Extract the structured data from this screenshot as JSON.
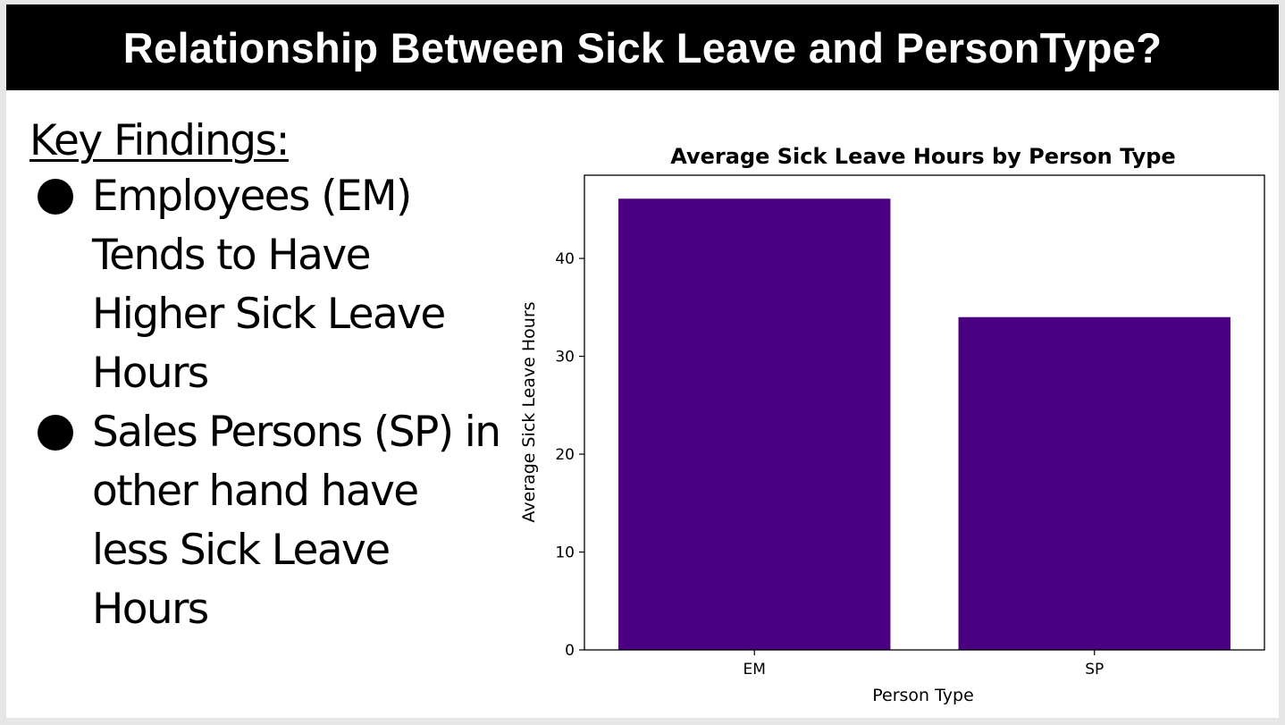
{
  "slide": {
    "title": "Relationship Between Sick Leave and PersonType?"
  },
  "findings": {
    "heading": "Key Findings:",
    "items": [
      "Employees (EM) Tends to Have Higher Sick Leave Hours",
      "Sales Persons (SP) in other hand have less Sick Leave Hours"
    ]
  },
  "colors": {
    "bar": "#4b0082",
    "title_bar": "#000000"
  },
  "chart_data": {
    "type": "bar",
    "title": "Average Sick Leave Hours by Person Type",
    "xlabel": "Person Type",
    "ylabel": "Average Sick Leave Hours",
    "categories": [
      "EM",
      "SP"
    ],
    "values": [
      46.1,
      34.0
    ],
    "ylim": [
      0,
      48.5
    ],
    "yticks": [
      0,
      10,
      20,
      30,
      40
    ],
    "grid": false,
    "legend": "none"
  }
}
